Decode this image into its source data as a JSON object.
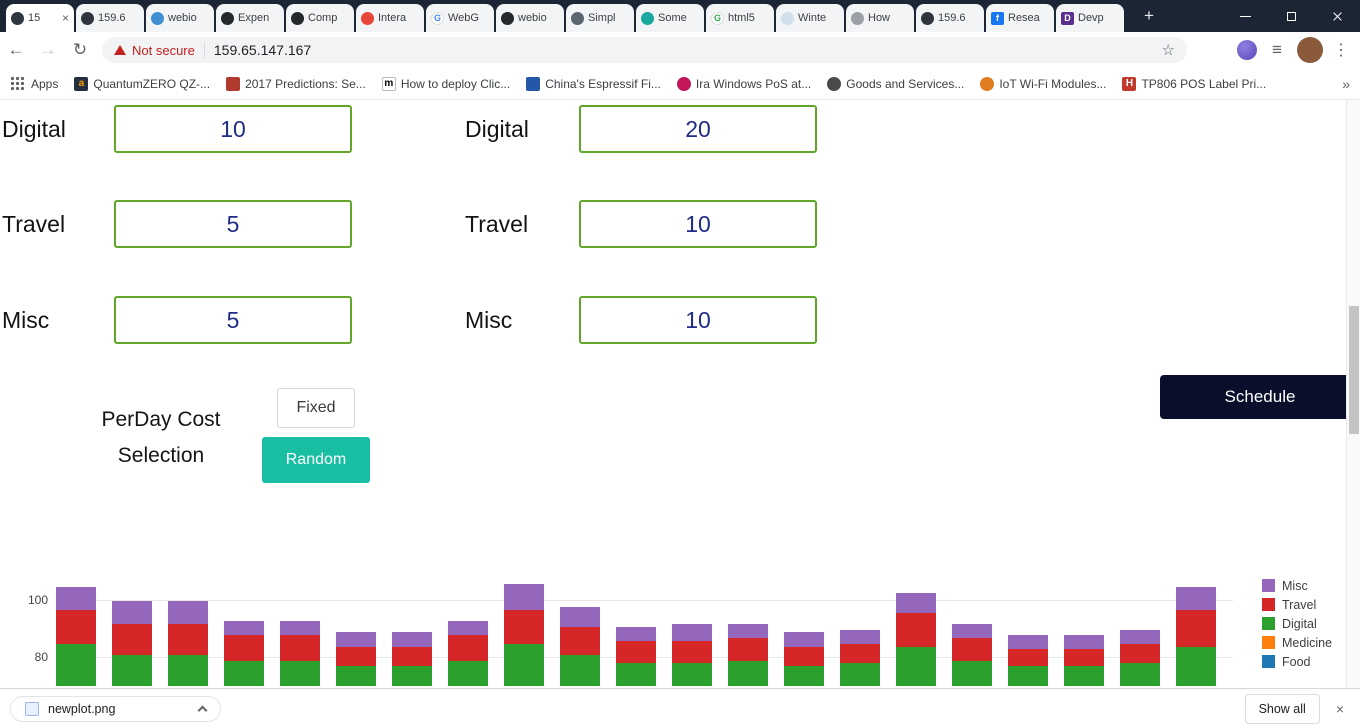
{
  "colors": {
    "input_border": "#61a529",
    "input_text": "#212c86",
    "random_button_bg": "#18bfa2",
    "schedule_button_bg": "#090e2a",
    "not_secure": "#c5221f",
    "tabstrip_bg": "#1c2534"
  },
  "browser": {
    "tabs": [
      {
        "title": "15",
        "active": true,
        "close": "×",
        "icon": {
          "name": "site-favicon",
          "bg": "#2f3640"
        }
      },
      {
        "title": "159.6",
        "icon": {
          "name": "site-favicon",
          "bg": "#2f3640"
        }
      },
      {
        "title": "webio",
        "icon": {
          "name": "webio-favicon",
          "bg": "#3f8fd2"
        }
      },
      {
        "title": "Expen",
        "icon": {
          "name": "github-favicon",
          "bg": "#24292e"
        }
      },
      {
        "title": "Comp",
        "icon": {
          "name": "github-favicon",
          "bg": "#24292e"
        }
      },
      {
        "title": "Intera",
        "icon": {
          "name": "colorful-favicon",
          "bg": "#e8453c"
        }
      },
      {
        "title": "WebG",
        "icon": {
          "name": "google-favicon",
          "bg": "#ffffff",
          "glyph": "G",
          "fg": "#4285f4",
          "border": "#dddddd"
        }
      },
      {
        "title": "webio",
        "icon": {
          "name": "github-favicon",
          "bg": "#24292e"
        }
      },
      {
        "title": "Simpl",
        "icon": {
          "name": "site-favicon",
          "bg": "#5b6770"
        }
      },
      {
        "title": "Some",
        "icon": {
          "name": "teal-favicon",
          "bg": "#1aa8a0"
        }
      },
      {
        "title": "html5",
        "icon": {
          "name": "google-favicon",
          "bg": "#ffffff",
          "glyph": "G",
          "fg": "#34a853",
          "border": "#dddddd"
        }
      },
      {
        "title": "Winte",
        "icon": {
          "name": "winter-favicon",
          "bg": "#cfe0ea"
        }
      },
      {
        "title": "How",
        "icon": {
          "name": "site-favicon",
          "bg": "#9aa0a6"
        }
      },
      {
        "title": "159.6",
        "icon": {
          "name": "site-favicon",
          "bg": "#2f3640"
        }
      },
      {
        "title": "Resea",
        "icon": {
          "name": "facebook-favicon",
          "bg": "#1877f2",
          "glyph": "f",
          "shape": "square"
        }
      },
      {
        "title": "Devp",
        "icon": {
          "name": "dev-favicon",
          "bg": "#5b2d91",
          "glyph": "D",
          "shape": "square"
        }
      }
    ],
    "new_tab": "+",
    "nav": {
      "back": "←",
      "forward": "→",
      "reload": "↻"
    },
    "address": {
      "security_label": "Not secure",
      "url": "159.65.147.167",
      "star_icon": "☆"
    },
    "toolbar": {
      "list_icon": "≡",
      "menu_icon": "⋮"
    },
    "bookmarks": {
      "apps_label": "Apps",
      "items": [
        {
          "label": "QuantumZERO QZ-...",
          "icon": {
            "name": "amazon-favicon",
            "bg": "#232f3e",
            "glyph": "a",
            "fg": "#ff9900",
            "shape": "square"
          }
        },
        {
          "label": "2017 Predictions: Se...",
          "icon": {
            "name": "bookmark-favicon",
            "bg": "#b03a2e",
            "shape": "square"
          }
        },
        {
          "label": "How to deploy Clic...",
          "icon": {
            "name": "medium-favicon",
            "bg": "#ffffff",
            "glyph": "m",
            "fg": "#000000",
            "shape": "square",
            "border": "#bbbbbb"
          }
        },
        {
          "label": "China's Espressif Fi...",
          "icon": {
            "name": "eet-favicon",
            "bg": "#2457a7",
            "shape": "square"
          }
        },
        {
          "label": "Ira Windows PoS at...",
          "icon": {
            "name": "bookmark-favicon",
            "bg": "#c2185b"
          }
        },
        {
          "label": "Goods and Services...",
          "icon": {
            "name": "bookmark-favicon",
            "bg": "#4a4a4a"
          }
        },
        {
          "label": "IoT Wi-Fi Modules...",
          "icon": {
            "name": "bookmark-favicon",
            "bg": "#e07b20"
          }
        },
        {
          "label": "TP806 POS Label Pri...",
          "icon": {
            "name": "hp-favicon",
            "bg": "#c0392b",
            "glyph": "H",
            "shape": "square"
          }
        }
      ],
      "overflow_icon": "»"
    }
  },
  "form": {
    "rows": [
      {
        "left_label": "Digital",
        "left_value": "10",
        "right_label": "Digital",
        "right_value": "20"
      },
      {
        "left_label": "Travel",
        "left_value": "5",
        "right_label": "Travel",
        "right_value": "10"
      },
      {
        "left_label": "Misc",
        "left_value": "5",
        "right_label": "Misc",
        "right_value": "10"
      }
    ],
    "perday_cost_label": "PerDay Cost Selection",
    "fixed_button": "Fixed",
    "random_button": "Random",
    "schedule_button": "Schedule"
  },
  "chart_data": {
    "type": "bar",
    "stacked": true,
    "x": [
      1,
      2,
      3,
      4,
      5,
      6,
      7,
      8,
      9,
      10,
      11,
      12,
      13,
      14,
      15,
      16,
      17,
      18,
      19,
      20,
      21
    ],
    "xaxis_tick_labels_visible": false,
    "series": [
      {
        "name": "Digital",
        "color": "#2ca02c",
        "values": [
          85,
          81,
          81,
          79,
          79,
          77,
          77,
          79,
          85,
          81,
          78,
          78,
          79,
          77,
          78,
          84,
          79,
          77,
          77,
          78,
          84
        ]
      },
      {
        "name": "Travel",
        "color": "#d62728",
        "values": [
          12,
          11,
          11,
          9,
          9,
          7,
          7,
          9,
          12,
          10,
          8,
          8,
          8,
          7,
          7,
          12,
          8,
          6,
          6,
          7,
          13
        ]
      },
      {
        "name": "Misc",
        "color": "#9467bd",
        "values": [
          8,
          8,
          8,
          5,
          5,
          5,
          5,
          5,
          9,
          7,
          5,
          6,
          5,
          5,
          5,
          7,
          5,
          5,
          5,
          5,
          8
        ]
      }
    ],
    "legend": [
      {
        "label": "Misc",
        "color": "#9467bd"
      },
      {
        "label": "Travel",
        "color": "#d62728"
      },
      {
        "label": "Digital",
        "color": "#2ca02c"
      },
      {
        "label": "Medicine",
        "color": "#ff7f0e"
      },
      {
        "label": "Food",
        "color": "#1f77b4"
      }
    ],
    "yticks": [
      80,
      100
    ],
    "visible_ylim": [
      70,
      109
    ],
    "clipping_note": "Chart is vertically clipped by the browser window; bars continue below the visible area. Medicine and Food segments fall below the visible clipped range."
  },
  "download_bar": {
    "filename": "newplot.png",
    "show_all_label": "Show all",
    "close_icon": "×"
  }
}
